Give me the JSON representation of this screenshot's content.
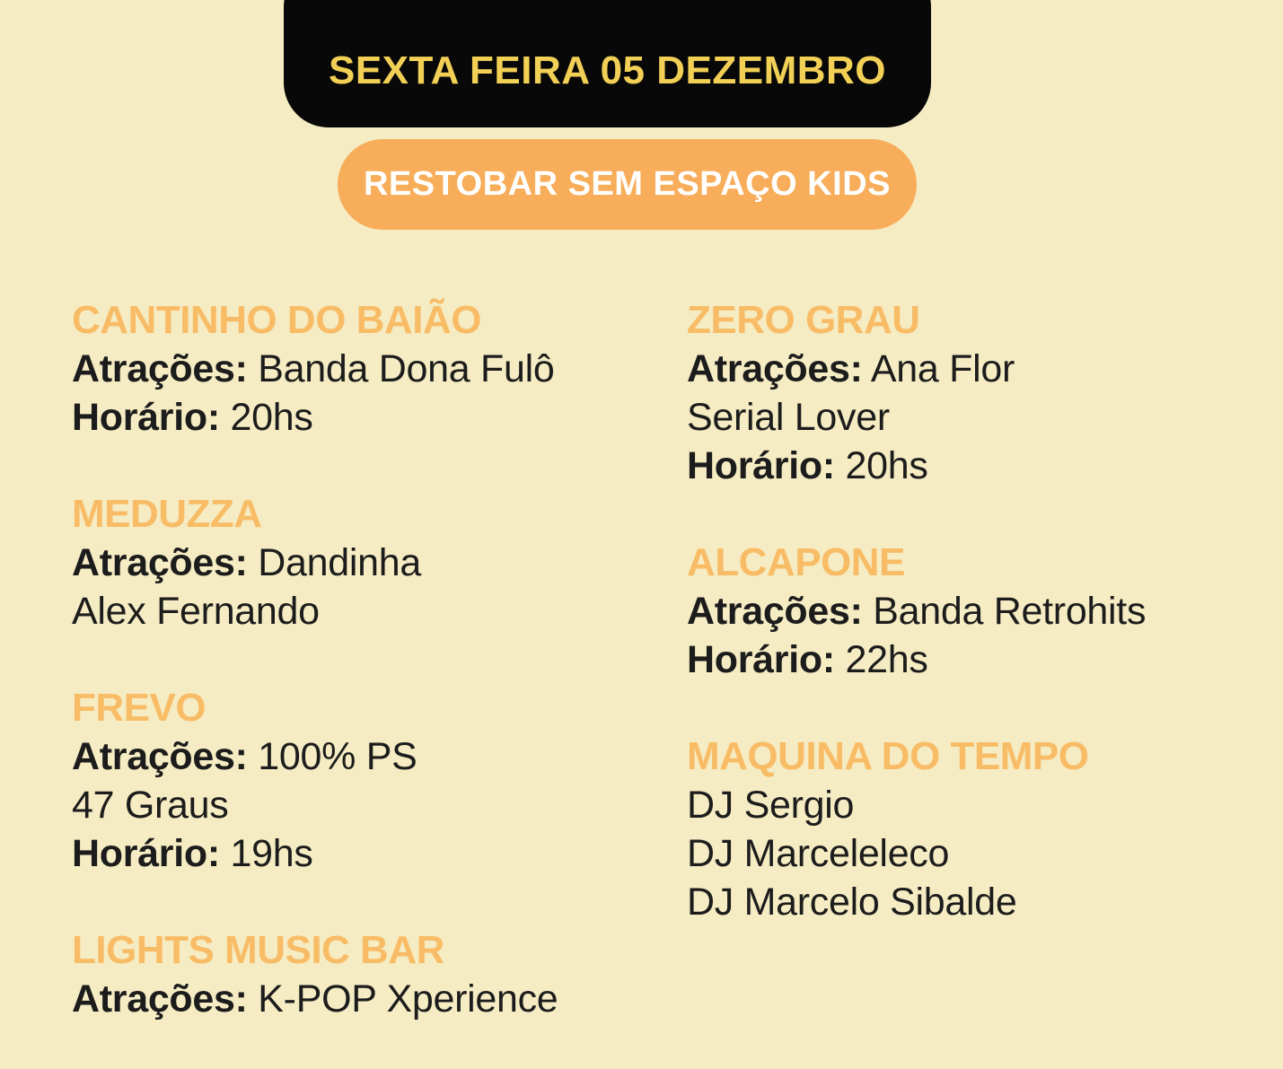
{
  "banner": {
    "date_label": "SEXTA FEIRA 05 DEZEMBRO"
  },
  "pill": {
    "label": "RESTOBAR SEM ESPAÇO KIDS"
  },
  "colors": {
    "background": "#F5ECC3",
    "banner_bg": "#080808",
    "banner_text": "#F2D056",
    "pill_bg": "#F7AD59",
    "pill_text": "#FFFFFF",
    "heading": "#F9BC66",
    "body_text": "#1C1C1C"
  },
  "columns": [
    {
      "blocks": [
        {
          "title": "CANTINHO DO BAIÃO",
          "lines": [
            {
              "bold": "Atrações:",
              "rest": " Banda Dona Fulô"
            },
            {
              "bold": "Horário:",
              "rest": " 20hs"
            }
          ]
        },
        {
          "title": "MEDUZZA",
          "lines": [
            {
              "bold": "Atrações:",
              "rest": " Dandinha"
            },
            {
              "text": "Alex Fernando"
            }
          ]
        },
        {
          "title": "FREVO",
          "lines": [
            {
              "bold": "Atrações:",
              "rest": " 100% PS"
            },
            {
              "text": "47 Graus"
            },
            {
              "bold": "Horário:",
              "rest": " 19hs"
            }
          ]
        },
        {
          "title": "LIGHTS MUSIC BAR",
          "lines": [
            {
              "bold": "Atrações:",
              "rest": " K-POP Xperience"
            }
          ]
        }
      ]
    },
    {
      "blocks": [
        {
          "title": "ZERO GRAU",
          "lines": [
            {
              "bold": "Atrações:",
              "rest": " Ana Flor"
            },
            {
              "text": "Serial Lover"
            },
            {
              "bold": "Horário:",
              "rest": " 20hs"
            }
          ]
        },
        {
          "title": "ALCAPONE",
          "lines": [
            {
              "bold": "Atrações:",
              "rest": " Banda Retrohits"
            },
            {
              "bold": "Horário:",
              "rest": " 22hs"
            }
          ]
        },
        {
          "title": "MAQUINA DO TEMPO",
          "lines": [
            {
              "text": "DJ Sergio"
            },
            {
              "text": "DJ Marceleleco"
            },
            {
              "text": "DJ Marcelo Sibalde"
            }
          ]
        }
      ]
    }
  ]
}
